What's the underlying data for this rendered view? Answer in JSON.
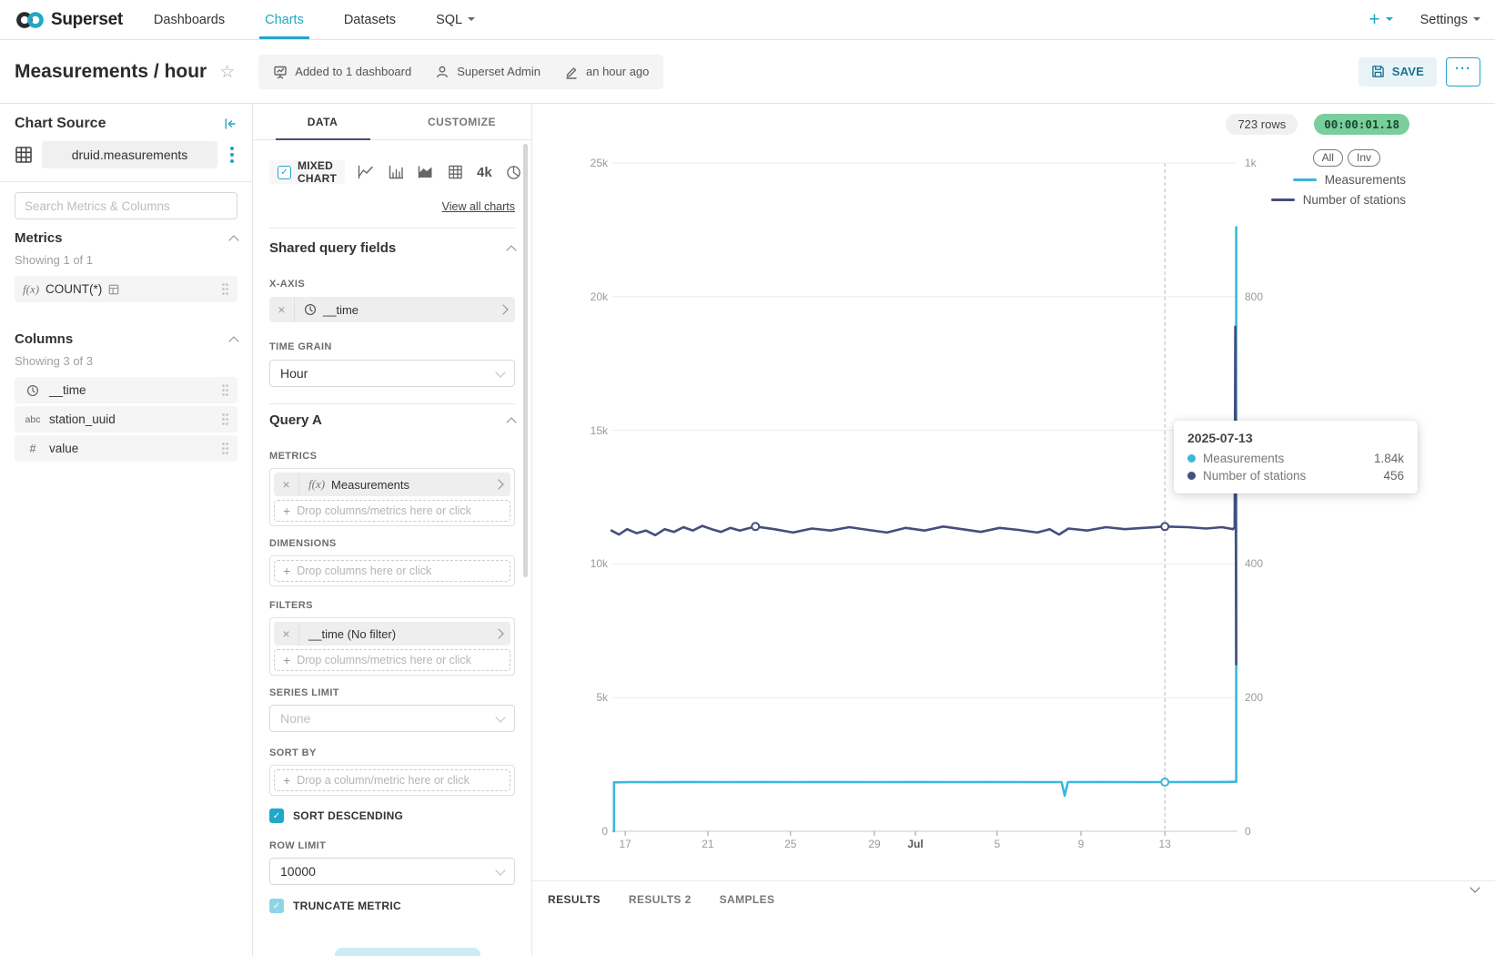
{
  "navbar": {
    "brand": "Superset",
    "items": [
      {
        "label": "Dashboards"
      },
      {
        "label": "Charts"
      },
      {
        "label": "Datasets"
      },
      {
        "label": "SQL"
      }
    ],
    "plus_label": "+",
    "settings_label": "Settings"
  },
  "header": {
    "title": "Measurements / hour",
    "added_to": "Added to 1 dashboard",
    "owner": "Superset Admin",
    "last_modified": "an hour ago",
    "save_label": "SAVE",
    "more_label": "···"
  },
  "chart_source": {
    "title": "Chart Source",
    "dataset_name": "druid.measurements",
    "search_placeholder": "Search Metrics & Columns",
    "metrics_title": "Metrics",
    "metrics_showing": "Showing 1 of 1",
    "metric_fx": "f(x)",
    "metric_name": "COUNT(*)",
    "columns_title": "Columns",
    "columns_showing": "Showing 3 of 3",
    "col_abc": "abc",
    "col_hash": "#",
    "columns": [
      {
        "label": "__time"
      },
      {
        "label": "station_uuid"
      },
      {
        "label": "value"
      }
    ]
  },
  "controls": {
    "tabs": [
      "DATA",
      "CUSTOMIZE"
    ],
    "viz_name": "MIXED CHART",
    "big_number_icon": "4k",
    "view_all": "View all charts",
    "shared_title": "Shared query fields",
    "x_axis_label": "X-AXIS",
    "x_axis_value": "__time",
    "time_grain_label": "TIME GRAIN",
    "time_grain_value": "Hour",
    "query_title": "Query A",
    "metrics_label": "METRICS",
    "metric_fx": "f(x)",
    "metric_value": "Measurements",
    "drop_metrics": "Drop columns/metrics here or click",
    "dimensions_label": "DIMENSIONS",
    "drop_columns": "Drop columns here or click",
    "filters_label": "FILTERS",
    "filter_value": "__time (No filter)",
    "series_limit_label": "SERIES LIMIT",
    "series_limit_value": "None",
    "sort_by_label": "SORT BY",
    "drop_sort": "Drop a column/metric here or click",
    "sort_descending_label": "SORT DESCENDING",
    "row_limit_label": "ROW LIMIT",
    "row_limit_value": "10000",
    "truncate_metric_label": "TRUNCATE METRIC"
  },
  "chart": {
    "rows_badge": "723 rows",
    "timer": "00:00:01.18",
    "timer_bg": "#79ce9b",
    "legend_all": "All",
    "legend_inv": "Inv",
    "tooltip": {
      "date": "2025-07-13",
      "rows": [
        {
          "label": "Measurements",
          "value": "1.84k",
          "color": "#3cb7dc"
        },
        {
          "label": "Number of stations",
          "value": "456",
          "color": "#454e7c"
        }
      ]
    }
  },
  "results": {
    "tabs": [
      "RESULTS",
      "RESULTS 2",
      "SAMPLES"
    ]
  },
  "chart_data": {
    "type": "line",
    "title": "Measurements / hour",
    "legend_position": "top-right",
    "grid": true,
    "legend": [
      {
        "name": "Measurements",
        "color": "#3cb7dc",
        "axis": "left"
      },
      {
        "name": "Number of stations",
        "color": "#454e7c",
        "axis": "right"
      }
    ],
    "left_axis": {
      "range": [
        0,
        25000
      ],
      "ticks": [
        {
          "label": "25k",
          "value": 25000
        },
        {
          "label": "20k",
          "value": 20000
        },
        {
          "label": "15k",
          "value": 15000
        },
        {
          "label": "10k",
          "value": 10000
        },
        {
          "label": "5k",
          "value": 5000
        },
        {
          "label": "0",
          "value": 0
        }
      ]
    },
    "right_axis": {
      "range": [
        0,
        1000
      ],
      "ticks": [
        {
          "label": "1k",
          "value": 1000
        },
        {
          "label": "800",
          "value": 800
        },
        {
          "label": "600",
          "value": 600
        },
        {
          "label": "400",
          "value": 400
        },
        {
          "label": "200",
          "value": 200
        },
        {
          "label": "0",
          "value": 0
        }
      ]
    },
    "x_ticks": [
      {
        "label": "17",
        "f": 0.022
      },
      {
        "label": "21",
        "f": 0.154
      },
      {
        "label": "25",
        "f": 0.286
      },
      {
        "label": "29",
        "f": 0.42
      },
      {
        "label": "Jul",
        "f": 0.4855,
        "emph": true
      },
      {
        "label": "5",
        "f": 0.616
      },
      {
        "label": "9",
        "f": 0.75
      },
      {
        "label": "13",
        "f": 0.884
      }
    ],
    "hover_f": 0.884,
    "series": [
      {
        "name": "Measurements",
        "axis": "left",
        "color": "#3cb7dc",
        "points": [
          [
            0.004,
            0
          ],
          [
            0.004,
            1830
          ],
          [
            0.03,
            1840
          ],
          [
            0.08,
            1836
          ],
          [
            0.12,
            1842
          ],
          [
            0.18,
            1838
          ],
          [
            0.24,
            1841
          ],
          [
            0.3,
            1839
          ],
          [
            0.36,
            1842
          ],
          [
            0.42,
            1838
          ],
          [
            0.48,
            1841
          ],
          [
            0.54,
            1839
          ],
          [
            0.6,
            1842
          ],
          [
            0.66,
            1840
          ],
          [
            0.7,
            1839
          ],
          [
            0.719,
            1840
          ],
          [
            0.724,
            1330
          ],
          [
            0.729,
            1840
          ],
          [
            0.78,
            1841
          ],
          [
            0.83,
            1839
          ],
          [
            0.884,
            1840
          ],
          [
            0.93,
            1841
          ],
          [
            0.97,
            1843
          ],
          [
            0.995,
            1850
          ],
          [
            0.998,
            1850
          ],
          [
            0.998,
            22600
          ]
        ]
      },
      {
        "name": "Number of stations",
        "axis": "right",
        "color": "#454e7c",
        "points": [
          [
            0.0,
            450
          ],
          [
            0.012,
            444
          ],
          [
            0.025,
            452
          ],
          [
            0.04,
            446
          ],
          [
            0.055,
            450
          ],
          [
            0.07,
            443
          ],
          [
            0.085,
            452
          ],
          [
            0.1,
            448
          ],
          [
            0.115,
            455
          ],
          [
            0.13,
            450
          ],
          [
            0.145,
            457
          ],
          [
            0.16,
            452
          ],
          [
            0.175,
            448
          ],
          [
            0.19,
            454
          ],
          [
            0.205,
            450
          ],
          [
            0.23,
            456
          ],
          [
            0.26,
            452
          ],
          [
            0.29,
            447
          ],
          [
            0.32,
            453
          ],
          [
            0.35,
            450
          ],
          [
            0.38,
            455
          ],
          [
            0.41,
            451
          ],
          [
            0.44,
            447
          ],
          [
            0.47,
            454
          ],
          [
            0.5,
            450
          ],
          [
            0.53,
            456
          ],
          [
            0.56,
            452
          ],
          [
            0.59,
            448
          ],
          [
            0.62,
            454
          ],
          [
            0.65,
            451
          ],
          [
            0.68,
            447
          ],
          [
            0.7,
            452
          ],
          [
            0.715,
            444
          ],
          [
            0.73,
            453
          ],
          [
            0.76,
            450
          ],
          [
            0.79,
            455
          ],
          [
            0.82,
            452
          ],
          [
            0.85,
            454
          ],
          [
            0.884,
            456
          ],
          [
            0.92,
            455
          ],
          [
            0.95,
            453
          ],
          [
            0.975,
            455
          ],
          [
            0.993,
            452
          ],
          [
            0.9955,
            455
          ],
          [
            0.9965,
            755
          ],
          [
            0.998,
            250
          ]
        ]
      }
    ],
    "markers": [
      {
        "f": 0.23,
        "value": 456,
        "axis": "right",
        "color": "#454e7c"
      },
      {
        "f": 0.884,
        "value": 1840,
        "axis": "left",
        "color": "#3cb7dc"
      },
      {
        "f": 0.884,
        "value": 456,
        "axis": "right",
        "color": "#454e7c"
      }
    ]
  }
}
